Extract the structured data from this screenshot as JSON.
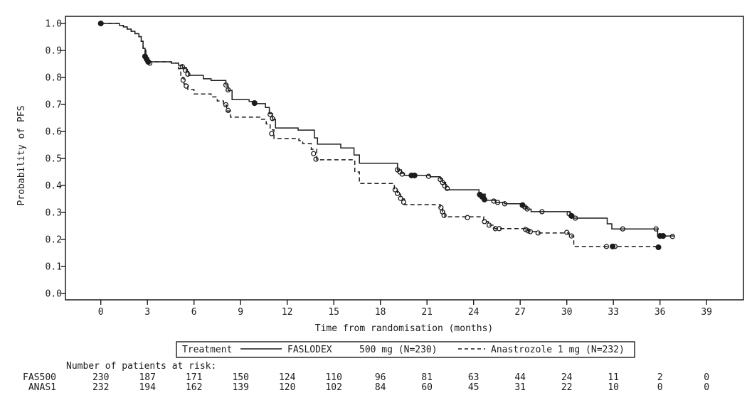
{
  "chart_data": {
    "type": "line",
    "subtype": "kaplan-meier-step",
    "title": "",
    "xlabel": "Time from randomisation (months)",
    "ylabel": "Probability of PFS",
    "x_ticks": [
      0,
      3,
      6,
      9,
      12,
      15,
      18,
      21,
      24,
      27,
      30,
      33,
      36,
      39
    ],
    "y_tick_labels": [
      "1.0",
      "0.9",
      "0.8",
      "0.7",
      "0.6",
      "0.5",
      "0.4",
      "0.3",
      "0.2",
      "0.1",
      "0.0"
    ],
    "xlim": [
      -2.3,
      41.4
    ],
    "ylim": [
      -0.024,
      1.026
    ],
    "grid": false,
    "legend_position": "bottom",
    "series": [
      {
        "name": "FASLODEX 500 mg (N=230)",
        "line": "solid",
        "steps": [
          [
            0,
            1.0
          ],
          [
            1.2,
            0.993
          ],
          [
            1.45,
            0.987
          ],
          [
            1.7,
            0.979
          ],
          [
            1.95,
            0.971
          ],
          [
            2.2,
            0.962
          ],
          [
            2.45,
            0.951
          ],
          [
            2.6,
            0.934
          ],
          [
            2.72,
            0.908
          ],
          [
            2.85,
            0.878
          ],
          [
            2.95,
            0.868
          ],
          [
            3.05,
            0.858
          ],
          [
            4.55,
            0.853
          ],
          [
            5.0,
            0.845
          ],
          [
            5.25,
            0.837
          ],
          [
            5.5,
            0.822
          ],
          [
            5.65,
            0.808
          ],
          [
            6.6,
            0.795
          ],
          [
            7.1,
            0.789
          ],
          [
            8.05,
            0.772
          ],
          [
            8.2,
            0.752
          ],
          [
            8.45,
            0.718
          ],
          [
            9.55,
            0.711
          ],
          [
            10.0,
            0.703
          ],
          [
            10.6,
            0.689
          ],
          [
            10.85,
            0.666
          ],
          [
            11.05,
            0.645
          ],
          [
            11.25,
            0.613
          ],
          [
            12.7,
            0.605
          ],
          [
            13.75,
            0.576
          ],
          [
            13.95,
            0.553
          ],
          [
            15.45,
            0.539
          ],
          [
            16.3,
            0.513
          ],
          [
            16.65,
            0.482
          ],
          [
            19.1,
            0.458
          ],
          [
            19.35,
            0.445
          ],
          [
            19.55,
            0.437
          ],
          [
            21.2,
            0.432
          ],
          [
            21.85,
            0.424
          ],
          [
            22.0,
            0.411
          ],
          [
            22.2,
            0.384
          ],
          [
            24.35,
            0.368
          ],
          [
            24.75,
            0.345
          ],
          [
            25.4,
            0.337
          ],
          [
            26.0,
            0.332
          ],
          [
            27.15,
            0.322
          ],
          [
            27.45,
            0.312
          ],
          [
            27.7,
            0.303
          ],
          [
            30.2,
            0.292
          ],
          [
            30.45,
            0.279
          ],
          [
            32.6,
            0.258
          ],
          [
            32.9,
            0.239
          ],
          [
            35.85,
            0.213
          ],
          [
            36.9,
            0.213
          ]
        ],
        "censors": [
          [
            0,
            1.0,
            1
          ],
          [
            2.85,
            0.878,
            1
          ],
          [
            2.95,
            0.868,
            1
          ],
          [
            3.05,
            0.858,
            1
          ],
          [
            3.15,
            0.853,
            0
          ],
          [
            5.25,
            0.84,
            0
          ],
          [
            5.45,
            0.826,
            0
          ],
          [
            5.6,
            0.812,
            0
          ],
          [
            8.05,
            0.772,
            0
          ],
          [
            8.2,
            0.754,
            0
          ],
          [
            9.9,
            0.705,
            1
          ],
          [
            10.9,
            0.663,
            0
          ],
          [
            11.05,
            0.648,
            0
          ],
          [
            19.1,
            0.458,
            0
          ],
          [
            19.25,
            0.45,
            0
          ],
          [
            19.4,
            0.442,
            0
          ],
          [
            20.0,
            0.437,
            1
          ],
          [
            20.2,
            0.437,
            1
          ],
          [
            21.1,
            0.434,
            0
          ],
          [
            21.85,
            0.422,
            0
          ],
          [
            22.0,
            0.411,
            0
          ],
          [
            22.15,
            0.398,
            0
          ],
          [
            22.3,
            0.389,
            0
          ],
          [
            24.4,
            0.366,
            1
          ],
          [
            24.55,
            0.358,
            1
          ],
          [
            24.7,
            0.348,
            1
          ],
          [
            25.3,
            0.342,
            0
          ],
          [
            25.55,
            0.337,
            0
          ],
          [
            26.0,
            0.332,
            0
          ],
          [
            27.15,
            0.327,
            1
          ],
          [
            27.3,
            0.32,
            0
          ],
          [
            27.45,
            0.313,
            0
          ],
          [
            28.4,
            0.303,
            0
          ],
          [
            30.15,
            0.295,
            0
          ],
          [
            30.3,
            0.287,
            1
          ],
          [
            30.55,
            0.279,
            0
          ],
          [
            33.6,
            0.239,
            0
          ],
          [
            35.75,
            0.239,
            0
          ],
          [
            36.0,
            0.213,
            1
          ],
          [
            36.2,
            0.213,
            1
          ],
          [
            36.8,
            0.211,
            0
          ]
        ]
      },
      {
        "name": "Anastrozole 1 mg (N=232)",
        "line": "dashed",
        "steps": [
          [
            0,
            1.0
          ],
          [
            1.2,
            0.993
          ],
          [
            1.45,
            0.987
          ],
          [
            1.7,
            0.979
          ],
          [
            1.95,
            0.971
          ],
          [
            2.2,
            0.962
          ],
          [
            2.45,
            0.951
          ],
          [
            2.6,
            0.934
          ],
          [
            2.72,
            0.908
          ],
          [
            2.9,
            0.868
          ],
          [
            3.1,
            0.858
          ],
          [
            4.55,
            0.853
          ],
          [
            5.0,
            0.832
          ],
          [
            5.15,
            0.8
          ],
          [
            5.35,
            0.776
          ],
          [
            5.6,
            0.755
          ],
          [
            6.0,
            0.739
          ],
          [
            7.1,
            0.728
          ],
          [
            7.5,
            0.713
          ],
          [
            7.9,
            0.697
          ],
          [
            8.1,
            0.676
          ],
          [
            8.35,
            0.653
          ],
          [
            10.3,
            0.645
          ],
          [
            10.65,
            0.628
          ],
          [
            10.9,
            0.606
          ],
          [
            11.15,
            0.574
          ],
          [
            12.75,
            0.566
          ],
          [
            13.0,
            0.555
          ],
          [
            13.55,
            0.534
          ],
          [
            13.9,
            0.495
          ],
          [
            16.35,
            0.45
          ],
          [
            16.65,
            0.407
          ],
          [
            18.9,
            0.384
          ],
          [
            19.1,
            0.368
          ],
          [
            19.3,
            0.35
          ],
          [
            19.55,
            0.329
          ],
          [
            21.85,
            0.318
          ],
          [
            22.0,
            0.3
          ],
          [
            22.15,
            0.284
          ],
          [
            24.65,
            0.266
          ],
          [
            24.95,
            0.253
          ],
          [
            25.35,
            0.24
          ],
          [
            27.35,
            0.235
          ],
          [
            27.6,
            0.229
          ],
          [
            28.2,
            0.224
          ],
          [
            30.15,
            0.213
          ],
          [
            30.45,
            0.174
          ],
          [
            35.9,
            0.174
          ]
        ],
        "censors": [
          [
            2.95,
            0.868,
            0
          ],
          [
            5.3,
            0.79,
            0
          ],
          [
            5.5,
            0.768,
            0
          ],
          [
            8.05,
            0.699,
            0
          ],
          [
            8.2,
            0.678,
            0
          ],
          [
            11.0,
            0.592,
            0
          ],
          [
            13.7,
            0.518,
            0
          ],
          [
            13.85,
            0.497,
            0
          ],
          [
            18.95,
            0.384,
            0
          ],
          [
            19.1,
            0.37,
            0
          ],
          [
            19.3,
            0.352,
            0
          ],
          [
            19.5,
            0.338,
            0
          ],
          [
            21.9,
            0.318,
            0
          ],
          [
            22.0,
            0.302,
            0
          ],
          [
            22.1,
            0.289,
            0
          ],
          [
            23.6,
            0.281,
            0
          ],
          [
            24.7,
            0.266,
            0
          ],
          [
            25.0,
            0.253,
            0
          ],
          [
            25.4,
            0.24,
            0
          ],
          [
            25.65,
            0.24,
            0
          ],
          [
            27.35,
            0.237,
            0
          ],
          [
            27.5,
            0.232,
            0
          ],
          [
            27.65,
            0.229,
            0
          ],
          [
            28.15,
            0.224,
            0
          ],
          [
            30.0,
            0.226,
            0
          ],
          [
            30.3,
            0.213,
            0
          ],
          [
            32.55,
            0.174,
            0
          ],
          [
            32.95,
            0.174,
            1
          ],
          [
            33.1,
            0.174,
            0
          ],
          [
            35.9,
            0.171,
            1
          ]
        ]
      }
    ]
  },
  "legend": {
    "title": "Treatment",
    "series1_name": "FASLODEX",
    "series1_detail": "500 mg (N=230)",
    "series2_name": "Anastrozole 1 mg (N=232)"
  },
  "risk_table": {
    "header": "Number of patients at risk:",
    "rows": [
      {
        "label": "FAS500",
        "values": [
          230,
          187,
          171,
          150,
          124,
          110,
          96,
          81,
          63,
          44,
          24,
          11,
          2,
          0
        ]
      },
      {
        "label": "ANAS1",
        "values": [
          232,
          194,
          162,
          139,
          120,
          102,
          84,
          60,
          45,
          31,
          22,
          10,
          0,
          0
        ]
      }
    ]
  },
  "colors": {
    "line": "#1c1c1c",
    "text": "#1c1c1c",
    "background": "#ffffff"
  }
}
